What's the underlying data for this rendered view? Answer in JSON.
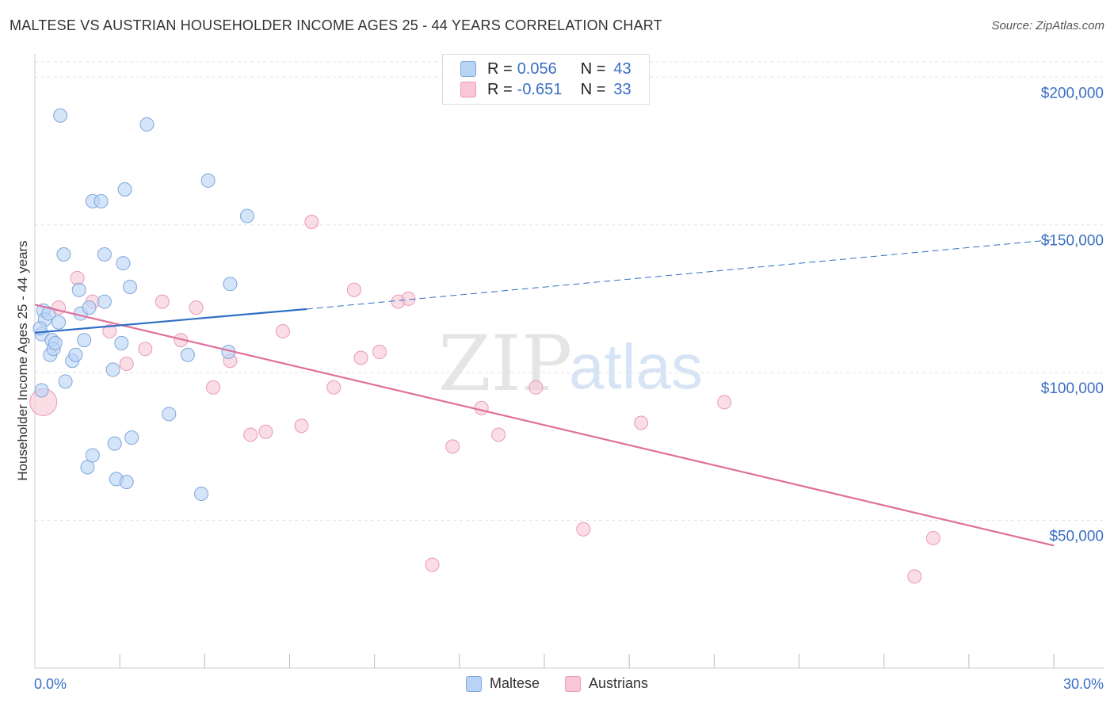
{
  "title": "MALTESE VS AUSTRIAN HOUSEHOLDER INCOME AGES 25 - 44 YEARS CORRELATION CHART",
  "source": "Source: ZipAtlas.com",
  "watermark": {
    "zip": "ZIP",
    "atlas": "atlas"
  },
  "colors": {
    "maltese_fill": "#b9d3f5",
    "maltese_stroke": "#7fa6dc",
    "maltese_line": "#2f6fc6",
    "austrians_fill": "#f9c6d6",
    "austrians_stroke": "#e99ab3",
    "austrians_line": "#e0709a",
    "grid": "#e3e3e3",
    "tick_text": "#3b6fc4"
  },
  "legend_top": {
    "rows": [
      {
        "r_label": "R =",
        "r_value": "0.056",
        "n_label": "N =",
        "n_value": "43"
      },
      {
        "r_label": "R =",
        "r_value": "-0.651",
        "n_label": "N =",
        "n_value": "33"
      }
    ]
  },
  "legend_bottom": {
    "items": [
      "Maltese",
      "Austrians"
    ]
  },
  "chart_data": {
    "type": "scatter",
    "title": "MALTESE VS AUSTRIAN HOUSEHOLDER INCOME AGES 25 - 44 YEARS CORRELATION CHART",
    "xlabel": "",
    "ylabel": "Householder Income Ages 25 - 44 years",
    "xlim": [
      0,
      30
    ],
    "ylim": [
      0,
      210000
    ],
    "x_tick_labels": [
      "0.0%",
      "30.0%"
    ],
    "y_ticks": [
      50000,
      100000,
      150000,
      200000
    ],
    "y_tick_labels": [
      "$50,000",
      "$100,000",
      "$150,000",
      "$200,000"
    ],
    "grid": true,
    "legend_position": "top-center",
    "series": [
      {
        "name": "Maltese",
        "R": 0.056,
        "N": 43,
        "trend": {
          "x": [
            0,
            8
          ],
          "y": [
            113500,
            121500
          ],
          "dashed_extension": {
            "x": [
              8,
              30
            ],
            "y": [
              121500,
              145000
            ]
          }
        },
        "points": [
          [
            0.2,
            94000
          ],
          [
            0.2,
            113000
          ],
          [
            0.25,
            121000
          ],
          [
            0.3,
            118000
          ],
          [
            0.4,
            120000
          ],
          [
            0.45,
            106000
          ],
          [
            0.5,
            111000
          ],
          [
            0.55,
            108000
          ],
          [
            0.6,
            110000
          ],
          [
            0.7,
            117000
          ],
          [
            0.75,
            187000
          ],
          [
            0.85,
            140000
          ],
          [
            0.9,
            97000
          ],
          [
            1.1,
            104000
          ],
          [
            1.2,
            106000
          ],
          [
            1.3,
            128000
          ],
          [
            1.35,
            120000
          ],
          [
            1.45,
            111000
          ],
          [
            1.55,
            68000
          ],
          [
            1.6,
            122000
          ],
          [
            1.7,
            72000
          ],
          [
            1.7,
            158000
          ],
          [
            1.95,
            158000
          ],
          [
            2.05,
            124000
          ],
          [
            2.05,
            140000
          ],
          [
            2.3,
            101000
          ],
          [
            2.35,
            76000
          ],
          [
            2.4,
            64000
          ],
          [
            2.55,
            110000
          ],
          [
            2.6,
            137000
          ],
          [
            2.65,
            162000
          ],
          [
            2.7,
            63000
          ],
          [
            2.8,
            129000
          ],
          [
            2.85,
            78000
          ],
          [
            3.3,
            184000
          ],
          [
            3.95,
            86000
          ],
          [
            4.5,
            106000
          ],
          [
            4.9,
            59000
          ],
          [
            5.1,
            165000
          ],
          [
            5.7,
            107000
          ],
          [
            5.75,
            130000
          ],
          [
            6.25,
            153000
          ],
          [
            0.15,
            115000
          ]
        ]
      },
      {
        "name": "Austrians",
        "R": -0.651,
        "N": 33,
        "trend": {
          "x": [
            0,
            30
          ],
          "y": [
            123000,
            41500
          ]
        },
        "points": [
          [
            0.25,
            90000
          ],
          [
            0.7,
            122000
          ],
          [
            1.25,
            132000
          ],
          [
            1.7,
            124000
          ],
          [
            2.2,
            114000
          ],
          [
            2.7,
            103000
          ],
          [
            3.25,
            108000
          ],
          [
            3.75,
            124000
          ],
          [
            4.3,
            111000
          ],
          [
            4.75,
            122000
          ],
          [
            5.25,
            95000
          ],
          [
            5.75,
            104000
          ],
          [
            6.35,
            79000
          ],
          [
            6.8,
            80000
          ],
          [
            7.3,
            114000
          ],
          [
            7.85,
            82000
          ],
          [
            8.15,
            151000
          ],
          [
            8.8,
            95000
          ],
          [
            9.4,
            128000
          ],
          [
            9.6,
            105000
          ],
          [
            10.15,
            107000
          ],
          [
            10.7,
            124000
          ],
          [
            11.0,
            125000
          ],
          [
            11.7,
            35000
          ],
          [
            12.3,
            75000
          ],
          [
            13.15,
            88000
          ],
          [
            13.65,
            79000
          ],
          [
            14.75,
            95000
          ],
          [
            16.15,
            47000
          ],
          [
            17.85,
            83000
          ],
          [
            20.3,
            90000
          ],
          [
            25.9,
            31000
          ],
          [
            26.45,
            44000
          ]
        ]
      }
    ]
  }
}
